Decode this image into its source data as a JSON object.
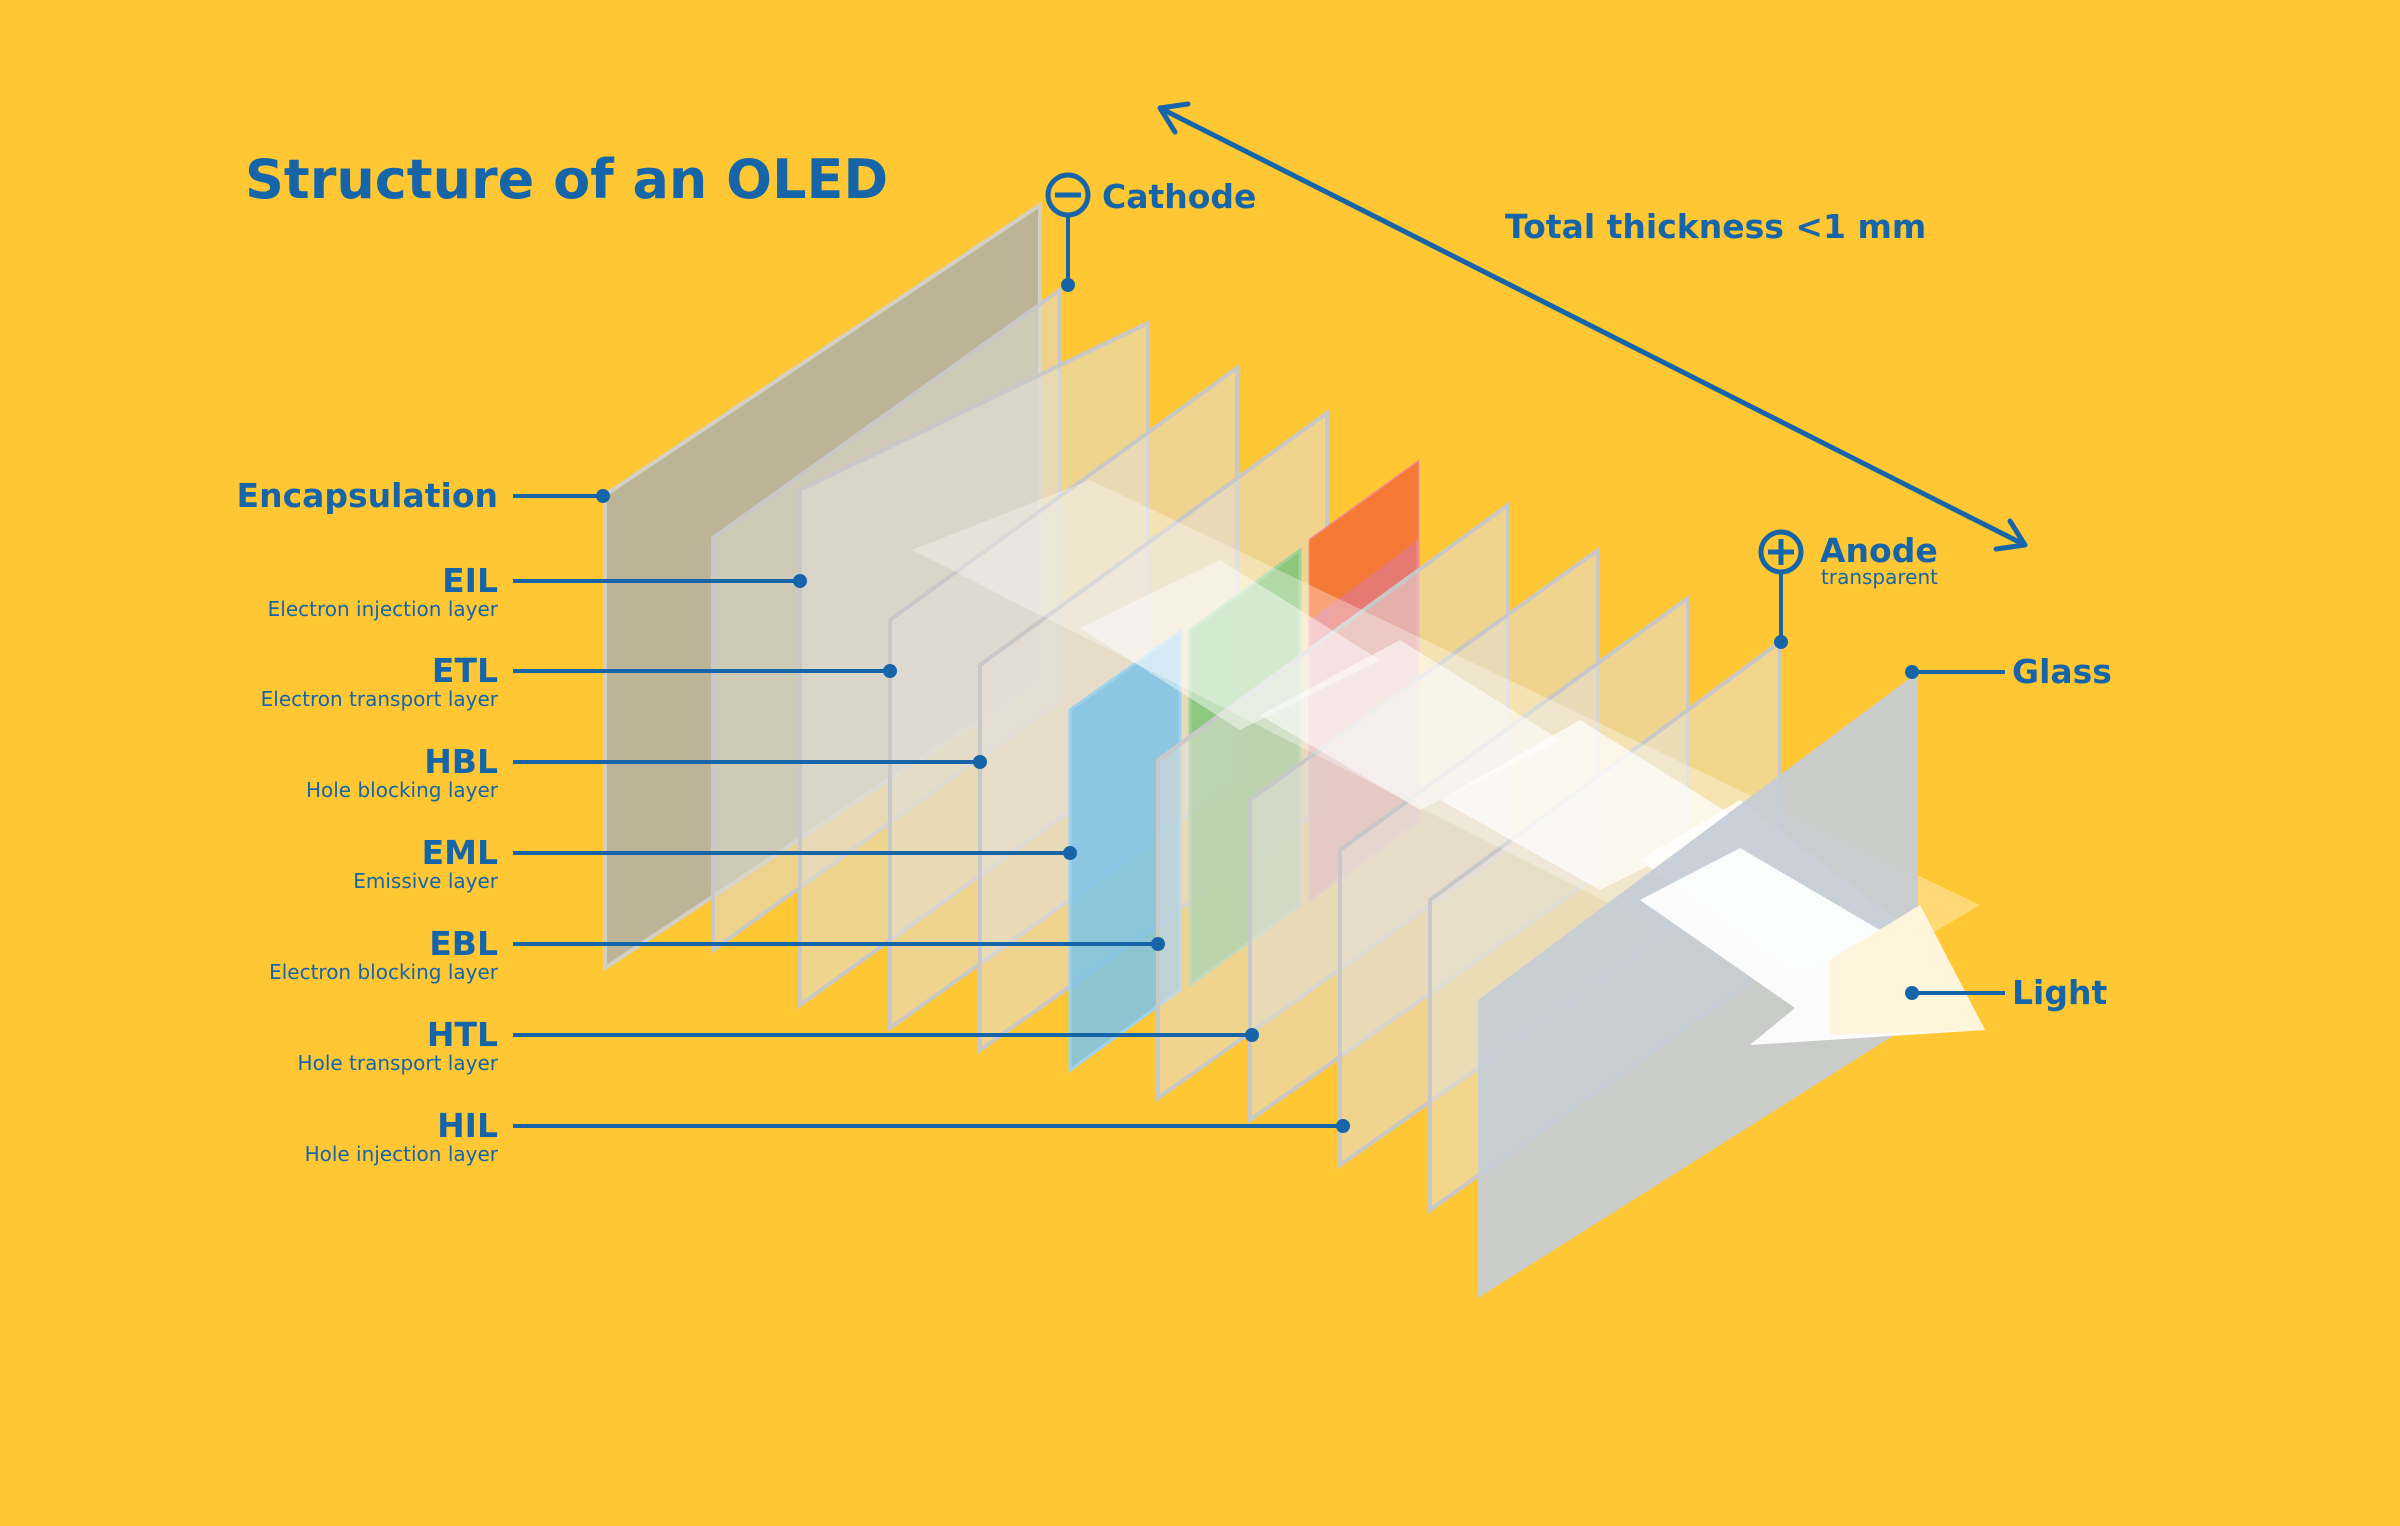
{
  "title": "Structure of an OLED",
  "thickness_label": "Total thickness <1 mm",
  "cathode": {
    "label": "Cathode",
    "symbol": "minus"
  },
  "anode": {
    "label": "Anode",
    "note": "transparent",
    "symbol": "plus"
  },
  "glass_label": "Glass",
  "light_label": "Light",
  "layers": [
    {
      "abbr": "Encapsulation",
      "full": ""
    },
    {
      "abbr": "EIL",
      "full": "Electron injection layer"
    },
    {
      "abbr": "ETL",
      "full": "Electron transport layer"
    },
    {
      "abbr": "HBL",
      "full": "Hole blocking layer"
    },
    {
      "abbr": "EML",
      "full": "Emissive layer"
    },
    {
      "abbr": "EBL",
      "full": "Electron blocking layer"
    },
    {
      "abbr": "HTL",
      "full": "Hole transport layer"
    },
    {
      "abbr": "HIL",
      "full": "Hole injection layer"
    }
  ],
  "colors": {
    "background": "#FFC734",
    "ink": "#1565A8",
    "encapsulation": "#B7B2A0",
    "emitter_blue": "#7EC3E6",
    "emitter_green": "#83C47A",
    "emitter_red": "#E4707A",
    "emitter_orange": "#F47A2F",
    "glass": "#C4CCD6",
    "light": "#FFF4D8"
  }
}
